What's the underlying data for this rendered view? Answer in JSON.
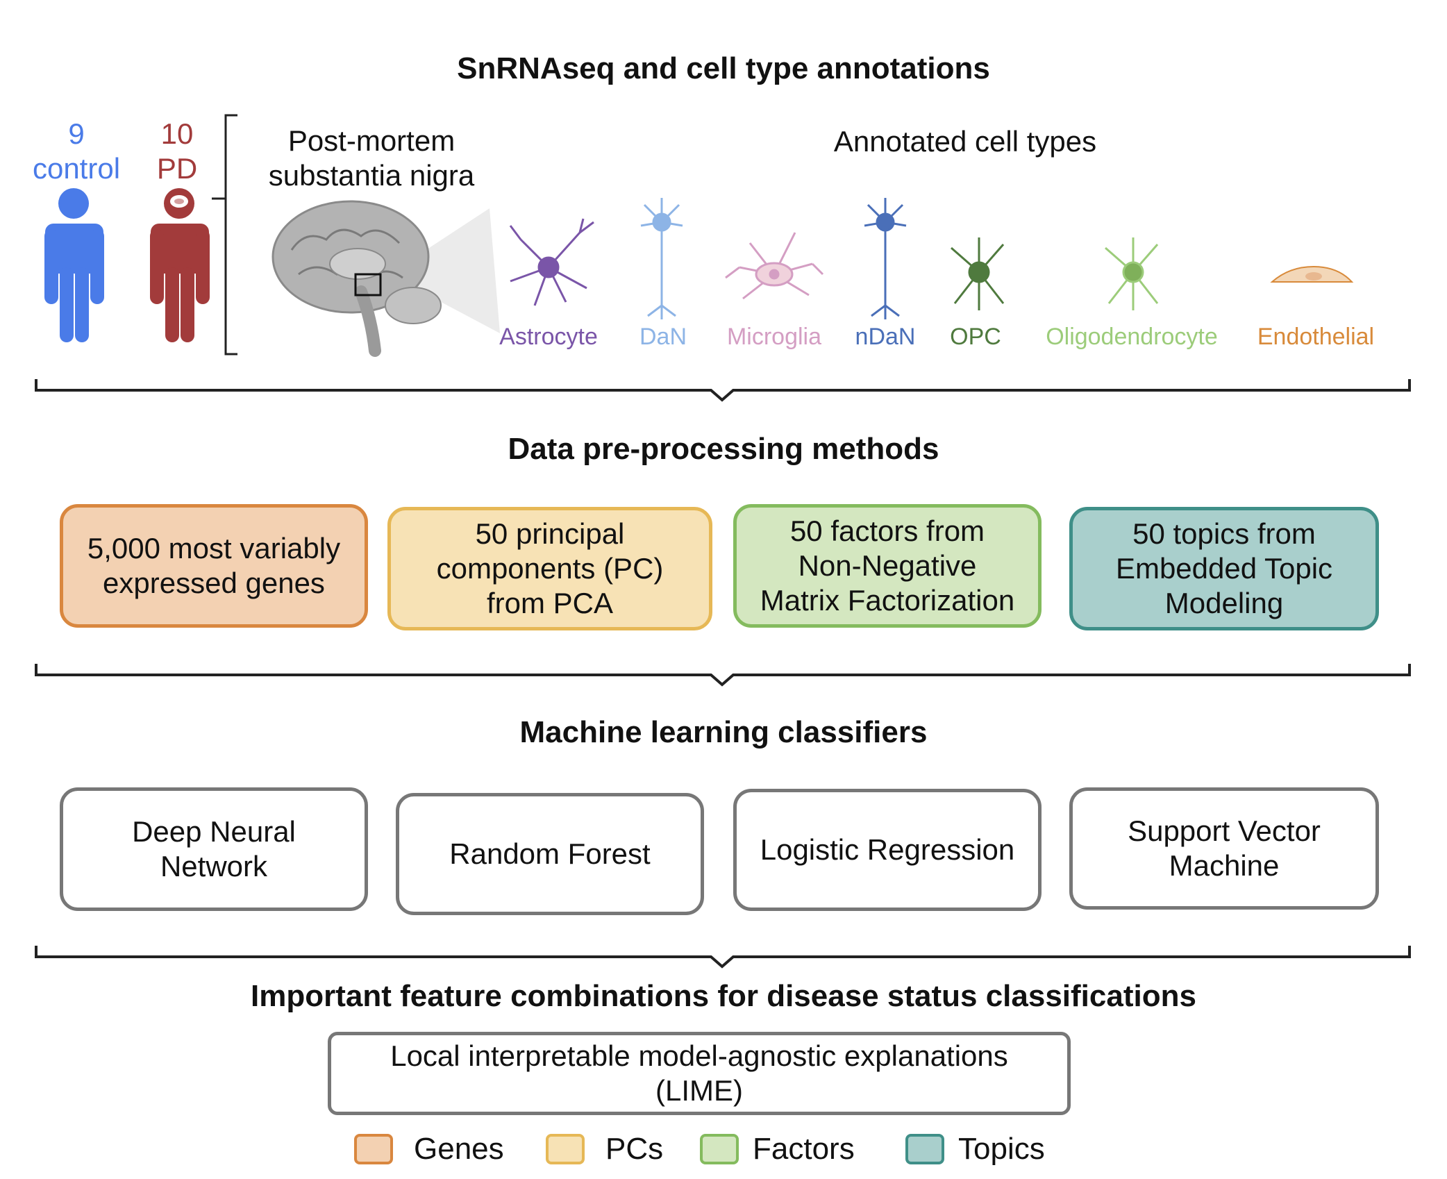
{
  "sections": {
    "section1_title": "SnRNAseq and cell type annotations",
    "section2_title": "Data pre-processing methods",
    "section3_title": "Machine learning classifiers",
    "section4_title": "Important feature combinations for disease status classifications"
  },
  "cohort": {
    "control_count": "9",
    "control_label": "control",
    "pd_count": "10",
    "pd_label": "PD",
    "tissue_line1": "Post-mortem",
    "tissue_line2": "substantia nigra",
    "colors": {
      "control": "#4a7be8",
      "pd": "#a23b3b"
    }
  },
  "cell_types": {
    "title": "Annotated cell types",
    "items": [
      {
        "label": "Astrocyte",
        "color": "#7a55a8"
      },
      {
        "label": "DaN",
        "color": "#8db4e6"
      },
      {
        "label": "Microglia",
        "color": "#d49ec3"
      },
      {
        "label": "nDaN",
        "color": "#4a6fb8"
      },
      {
        "label": "OPC",
        "color": "#4f7a3e"
      },
      {
        "label": "Oligodendrocyte",
        "color": "#9ccc7a"
      },
      {
        "label": "Endothelial",
        "color": "#d88a3a"
      }
    ]
  },
  "preprocessing": [
    {
      "line1": "5,000 most variably",
      "line2": "expressed genes",
      "line3": "",
      "fill": "#f3d1b2",
      "border": "#d9873f"
    },
    {
      "line1": "50 principal",
      "line2": "components (PC)",
      "line3": "from PCA",
      "fill": "#f7e2b5",
      "border": "#e6b856"
    },
    {
      "line1": "50 factors from",
      "line2": "Non-Negative",
      "line3": "Matrix Factorization",
      "fill": "#d4e7c0",
      "border": "#84bb5e"
    },
    {
      "line1": "50 topics from",
      "line2": "Embedded Topic",
      "line3": "Modeling",
      "fill": "#a9cfcc",
      "border": "#3f8f88"
    }
  ],
  "classifiers": [
    {
      "line1": "Deep Neural",
      "line2": "Network"
    },
    {
      "line1": "Random Forest",
      "line2": ""
    },
    {
      "line1": "Logistic Regression",
      "line2": ""
    },
    {
      "line1": "Support Vector",
      "line2": "Machine"
    }
  ],
  "lime": {
    "line1": "Local interpretable model-agnostic explanations",
    "line2": "(LIME)"
  },
  "legend": [
    {
      "label": "Genes",
      "fill": "#f3d1b2",
      "border": "#d9873f"
    },
    {
      "label": "PCs",
      "fill": "#f7e2b5",
      "border": "#e6b856"
    },
    {
      "label": "Factors",
      "fill": "#d4e7c0",
      "border": "#84bb5e"
    },
    {
      "label": "Topics",
      "fill": "#a9cfcc",
      "border": "#3f8f88"
    }
  ]
}
